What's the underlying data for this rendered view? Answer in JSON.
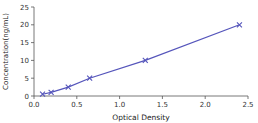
{
  "chart_data": {
    "type": "line",
    "x": [
      0.1,
      0.2,
      0.4,
      0.65,
      1.3,
      2.4
    ],
    "values": [
      0.5,
      1.0,
      2.5,
      5.0,
      10.0,
      20.0
    ],
    "color": "#5555bb",
    "marker": "x",
    "xlabel": "Optical Density",
    "ylabel": "Concentration(ng/mL)",
    "xlim": [
      0,
      2.5
    ],
    "ylim": [
      0,
      25
    ],
    "xticks": [
      {
        "value": 0,
        "label": "0.0"
      },
      {
        "value": 0.5,
        "label": "0.5"
      },
      {
        "value": 1,
        "label": "1.0"
      },
      {
        "value": 1.5,
        "label": "1.5"
      },
      {
        "value": 2,
        "label": "2.0"
      },
      {
        "value": 2.5,
        "label": "2.5"
      }
    ],
    "yticks": [
      0,
      5,
      10,
      15,
      20,
      25
    ]
  }
}
